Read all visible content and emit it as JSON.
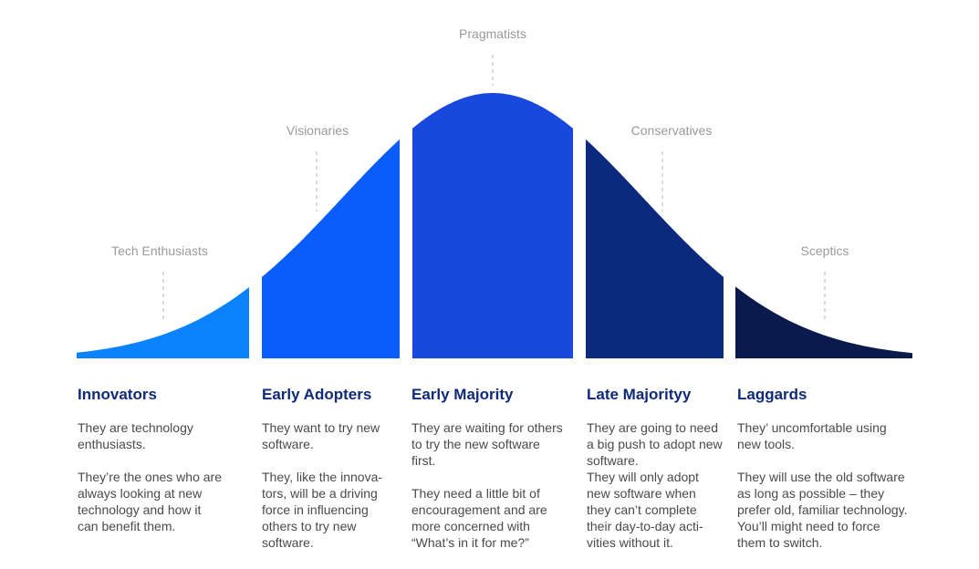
{
  "stages": [
    {
      "group": "Tech Enthusiasts",
      "title": "Innovators",
      "paragraphs": [
        [
          "They are technology",
          "enthusiasts."
        ],
        [
          "They’re the ones who are",
          "always looking at new",
          "technology and how it",
          "can benefit them."
        ]
      ]
    },
    {
      "group": "Visionaries",
      "title": "Early Adopters",
      "paragraphs": [
        [
          "They want to try new",
          "software."
        ],
        [
          "They, like the innova-",
          "tors, will be a driving",
          "force in influencing",
          "others to try new",
          "software."
        ]
      ]
    },
    {
      "group": "Pragmatists",
      "title": "Early Majority",
      "paragraphs": [
        [
          "They are waiting for others",
          "to try the new software",
          "first."
        ],
        [
          "They need a little bit of",
          "encouragement and are",
          "more concerned with",
          "“What’s in it for me?”"
        ]
      ]
    },
    {
      "group": "Conservatives",
      "title": "Late Majorityy",
      "paragraphs": [
        [
          "They are going to need",
          "a big push to adopt new",
          "software.",
          "They will only adopt",
          "new software when",
          "they can’t complete",
          "their day-to-day acti-",
          "vities without it."
        ]
      ]
    },
    {
      "group": "Sceptics",
      "title": "Laggards",
      "paragraphs": [
        [
          "They’ uncomfortable using",
          "new tools."
        ],
        [
          "They will use the old software",
          "as long as possible – they",
          "prefer old, familiar technology.",
          "You’ll might need to force",
          "them to switch."
        ]
      ]
    }
  ]
}
